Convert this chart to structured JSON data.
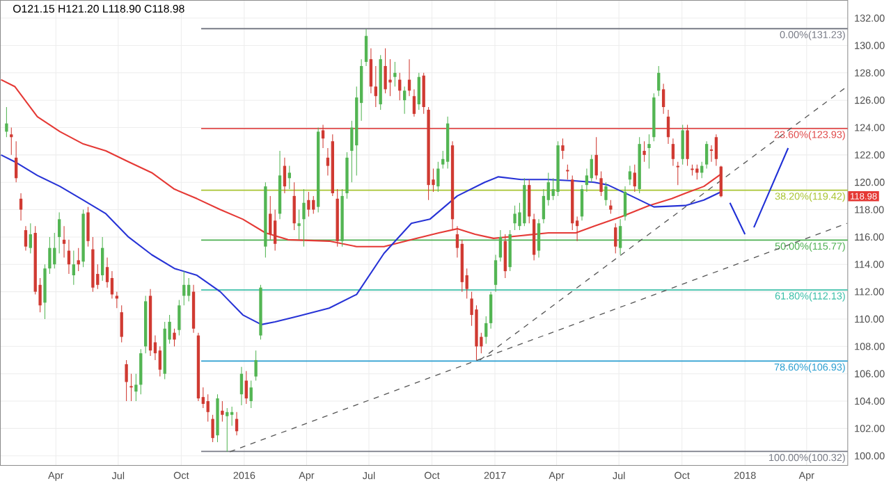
{
  "chart_data": {
    "type": "candlestick",
    "x": [
      "2015-01-19",
      "2015-01-26",
      "2015-02-02",
      "2015-02-09",
      "2015-02-16",
      "2015-02-23",
      "2015-03-02",
      "2015-03-09",
      "2015-03-16",
      "2015-03-23",
      "2015-03-30",
      "2015-04-06",
      "2015-04-13",
      "2015-04-20",
      "2015-04-27",
      "2015-05-04",
      "2015-05-11",
      "2015-05-18",
      "2015-05-25",
      "2015-06-01",
      "2015-06-08",
      "2015-06-15",
      "2015-06-22",
      "2015-06-29",
      "2015-07-06",
      "2015-07-13",
      "2015-07-20",
      "2015-07-27",
      "2015-08-03",
      "2015-08-10",
      "2015-08-17",
      "2015-08-24",
      "2015-08-31",
      "2015-09-07",
      "2015-09-14",
      "2015-09-21",
      "2015-09-28",
      "2015-10-05",
      "2015-10-12",
      "2015-10-19",
      "2015-10-26",
      "2015-11-02",
      "2015-11-09",
      "2015-11-16",
      "2015-11-23",
      "2015-11-30",
      "2015-12-07",
      "2015-12-14",
      "2015-12-21",
      "2015-12-28",
      "2016-01-04",
      "2016-01-11",
      "2016-01-18",
      "2016-01-25",
      "2016-02-01",
      "2016-02-08",
      "2016-02-15",
      "2016-02-22",
      "2016-02-29",
      "2016-03-07",
      "2016-03-14",
      "2016-03-21",
      "2016-03-28",
      "2016-04-04",
      "2016-04-11",
      "2016-04-18",
      "2016-04-25",
      "2016-05-02",
      "2016-05-09",
      "2016-05-16",
      "2016-05-23",
      "2016-05-30",
      "2016-06-06",
      "2016-06-13",
      "2016-06-20",
      "2016-06-27",
      "2016-07-04",
      "2016-07-11",
      "2016-07-18",
      "2016-07-25",
      "2016-08-01",
      "2016-08-08",
      "2016-08-15",
      "2016-08-22",
      "2016-08-29",
      "2016-09-05",
      "2016-09-12",
      "2016-09-19",
      "2016-09-26",
      "2016-10-03",
      "2016-10-10",
      "2016-10-17",
      "2016-10-24",
      "2016-10-31",
      "2016-11-07",
      "2016-11-14",
      "2016-11-21",
      "2016-11-28",
      "2016-12-05",
      "2016-12-12",
      "2016-12-19",
      "2016-12-26",
      "2017-01-02",
      "2017-01-09",
      "2017-01-16",
      "2017-01-23",
      "2017-01-30",
      "2017-02-06",
      "2017-02-13",
      "2017-02-20",
      "2017-02-27",
      "2017-03-06",
      "2017-03-13",
      "2017-03-20",
      "2017-03-27",
      "2017-04-03",
      "2017-04-10",
      "2017-04-17",
      "2017-04-24",
      "2017-05-01",
      "2017-05-08",
      "2017-05-15",
      "2017-05-22",
      "2017-05-29",
      "2017-06-05",
      "2017-06-12",
      "2017-06-19",
      "2017-06-26",
      "2017-07-03",
      "2017-07-10",
      "2017-07-17",
      "2017-07-24",
      "2017-07-31",
      "2017-08-07",
      "2017-08-14",
      "2017-08-21",
      "2017-08-28",
      "2017-09-04",
      "2017-09-11",
      "2017-09-18",
      "2017-09-25",
      "2017-10-02",
      "2017-10-09",
      "2017-10-16",
      "2017-10-23",
      "2017-10-30",
      "2017-11-06",
      "2017-11-13",
      "2017-11-20",
      "2017-11-27"
    ],
    "ohlc": [
      [
        123.7,
        125.5,
        123.3,
        124.3
      ],
      [
        123.5,
        124.0,
        122.0,
        123.3
      ],
      [
        121.8,
        123.0,
        120.0,
        120.3
      ],
      [
        118.8,
        119.2,
        117.2,
        118.0
      ],
      [
        116.5,
        116.8,
        115.0,
        115.3
      ],
      [
        115.2,
        117.0,
        114.8,
        116.2
      ],
      [
        116.3,
        116.8,
        111.8,
        112.0
      ],
      [
        112.5,
        113.0,
        110.5,
        111.0
      ],
      [
        111.2,
        114.0,
        110.0,
        113.7
      ],
      [
        113.7,
        116.0,
        113.3,
        115.2
      ],
      [
        114.0,
        116.3,
        113.7,
        115.2
      ],
      [
        116.0,
        117.8,
        114.8,
        117.3
      ],
      [
        115.8,
        116.8,
        114.5,
        115.5
      ],
      [
        115.0,
        115.8,
        113.3,
        114.0
      ],
      [
        113.2,
        115.0,
        112.5,
        114.0
      ],
      [
        114.3,
        115.2,
        113.5,
        114.0
      ],
      [
        114.2,
        118.0,
        113.8,
        117.7
      ],
      [
        117.8,
        118.2,
        115.3,
        115.7
      ],
      [
        115.1,
        116.0,
        112.0,
        112.3
      ],
      [
        113.3,
        114.0,
        112.2,
        112.5
      ],
      [
        113.2,
        116.0,
        112.8,
        115.2
      ],
      [
        113.8,
        114.5,
        112.3,
        112.7
      ],
      [
        113.0,
        113.5,
        111.5,
        111.8
      ],
      [
        111.7,
        112.0,
        110.8,
        111.5
      ],
      [
        110.5,
        111.0,
        108.3,
        108.7
      ],
      [
        106.7,
        107.0,
        104.0,
        105.4
      ],
      [
        105.1,
        106.0,
        104.0,
        105.0
      ],
      [
        104.7,
        106.0,
        104.0,
        105.2
      ],
      [
        105.2,
        107.8,
        104.5,
        107.5
      ],
      [
        108.0,
        111.7,
        107.5,
        111.3
      ],
      [
        111.7,
        112.2,
        107.3,
        107.7
      ],
      [
        108.3,
        108.8,
        107.0,
        107.5
      ],
      [
        107.7,
        108.0,
        105.8,
        106.3
      ],
      [
        106.0,
        109.8,
        105.6,
        109.3
      ],
      [
        108.5,
        110.3,
        108.2,
        109.8
      ],
      [
        109.0,
        109.3,
        108.0,
        108.5
      ],
      [
        109.2,
        111.4,
        108.8,
        111.0
      ],
      [
        111.7,
        113.5,
        111.0,
        112.5
      ],
      [
        111.7,
        113.0,
        111.3,
        112.5
      ],
      [
        112.0,
        112.5,
        109.0,
        109.3
      ],
      [
        108.8,
        109.0,
        104.0,
        104.2
      ],
      [
        104.3,
        105.0,
        103.5,
        103.8
      ],
      [
        104.0,
        104.5,
        102.5,
        103.2
      ],
      [
        102.7,
        103.0,
        101.0,
        101.3
      ],
      [
        101.5,
        104.5,
        101.0,
        104.2
      ],
      [
        103.3,
        104.0,
        102.5,
        103.0
      ],
      [
        102.9,
        103.5,
        100.3,
        103.2
      ],
      [
        103.0,
        103.6,
        102.2,
        103.2
      ],
      [
        102.7,
        103.2,
        101.5,
        101.8
      ],
      [
        104.5,
        106.5,
        103.7,
        106.0
      ],
      [
        105.5,
        106.2,
        103.8,
        104.2
      ],
      [
        104.0,
        105.5,
        103.5,
        105.0
      ],
      [
        105.8,
        107.7,
        105.5,
        107.0
      ],
      [
        108.8,
        112.5,
        108.5,
        112.3
      ],
      [
        115.3,
        120.0,
        114.5,
        119.7
      ],
      [
        117.7,
        119.0,
        115.8,
        116.2
      ],
      [
        117.2,
        118.0,
        115.0,
        115.5
      ],
      [
        117.7,
        122.3,
        117.3,
        120.5
      ],
      [
        121.2,
        121.8,
        119.2,
        119.7
      ],
      [
        120.3,
        121.2,
        119.5,
        120.7
      ],
      [
        119.0,
        120.0,
        116.5,
        117.0
      ],
      [
        116.8,
        118.0,
        115.8,
        117.0
      ],
      [
        117.3,
        119.5,
        115.3,
        118.5
      ],
      [
        118.7,
        119.3,
        117.5,
        118.0
      ],
      [
        118.7,
        119.0,
        117.7,
        118.0
      ],
      [
        118.2,
        124.0,
        117.8,
        123.7
      ],
      [
        123.8,
        124.2,
        122.5,
        123.2
      ],
      [
        121.8,
        122.5,
        120.5,
        121.2
      ],
      [
        123.0,
        123.5,
        119.0,
        119.2
      ],
      [
        118.8,
        119.5,
        115.3,
        115.7
      ],
      [
        115.7,
        119.5,
        115.3,
        119.0
      ],
      [
        119.2,
        122.2,
        118.8,
        121.8
      ],
      [
        122.3,
        124.5,
        120.0,
        124.0
      ],
      [
        122.7,
        127.0,
        120.5,
        126.2
      ],
      [
        125.8,
        129.0,
        124.5,
        128.5
      ],
      [
        128.8,
        131.2,
        128.5,
        130.7
      ],
      [
        129.0,
        129.8,
        126.5,
        127.0
      ],
      [
        127.0,
        128.5,
        125.5,
        126.3
      ],
      [
        125.7,
        129.3,
        125.3,
        129.0
      ],
      [
        128.5,
        129.8,
        126.5,
        126.8
      ],
      [
        127.5,
        129.0,
        126.3,
        127.3
      ],
      [
        127.7,
        128.8,
        127.0,
        128.0
      ],
      [
        127.5,
        128.0,
        126.0,
        126.7
      ],
      [
        126.0,
        127.0,
        125.0,
        126.7
      ],
      [
        127.5,
        129.0,
        126.3,
        126.7
      ],
      [
        126.3,
        126.8,
        124.8,
        125.0
      ],
      [
        125.7,
        128.0,
        125.3,
        127.7
      ],
      [
        127.8,
        128.0,
        125.0,
        125.5
      ],
      [
        125.3,
        125.5,
        118.7,
        119.8
      ],
      [
        120.2,
        121.0,
        119.3,
        119.8
      ],
      [
        119.7,
        121.5,
        119.3,
        121.0
      ],
      [
        121.3,
        122.3,
        121.0,
        121.7
      ],
      [
        121.5,
        124.8,
        121.0,
        124.3
      ],
      [
        122.7,
        123.0,
        116.5,
        117.3
      ],
      [
        116.2,
        116.8,
        114.5,
        115.2
      ],
      [
        115.5,
        115.8,
        112.0,
        112.7
      ],
      [
        113.2,
        113.7,
        111.5,
        112.2
      ],
      [
        111.5,
        112.0,
        109.5,
        110.3
      ],
      [
        110.7,
        111.0,
        107.0,
        108.0
      ],
      [
        108.7,
        109.0,
        107.5,
        108.0
      ],
      [
        108.7,
        110.2,
        108.2,
        109.7
      ],
      [
        109.7,
        112.0,
        109.3,
        111.8
      ],
      [
        112.5,
        114.7,
        112.0,
        114.3
      ],
      [
        114.5,
        116.5,
        114.2,
        116.0
      ],
      [
        115.7,
        116.2,
        113.0,
        113.5
      ],
      [
        113.8,
        116.5,
        113.5,
        116.2
      ],
      [
        117.0,
        118.3,
        116.5,
        117.7
      ],
      [
        116.8,
        118.5,
        116.5,
        117.8
      ],
      [
        117.0,
        120.3,
        116.8,
        119.8
      ],
      [
        119.8,
        120.2,
        117.0,
        117.5
      ],
      [
        117.3,
        117.7,
        114.3,
        114.7
      ],
      [
        115.0,
        117.3,
        114.5,
        117.0
      ],
      [
        117.3,
        119.5,
        117.0,
        119.0
      ],
      [
        118.7,
        120.7,
        118.3,
        120.0
      ],
      [
        119.0,
        120.3,
        118.7,
        119.5
      ],
      [
        119.3,
        123.0,
        119.0,
        122.7
      ],
      [
        122.7,
        123.2,
        121.7,
        122.3
      ],
      [
        120.9,
        121.3,
        120.2,
        120.8
      ],
      [
        120.2,
        120.5,
        116.5,
        117.0
      ],
      [
        117.2,
        117.5,
        115.7,
        116.8
      ],
      [
        117.5,
        119.8,
        117.2,
        119.5
      ],
      [
        119.8,
        121.0,
        119.3,
        120.5
      ],
      [
        120.3,
        122.0,
        120.0,
        121.7
      ],
      [
        122.0,
        123.3,
        120.2,
        120.5
      ],
      [
        120.3,
        120.8,
        119.0,
        119.3
      ],
      [
        118.7,
        120.0,
        118.3,
        119.7
      ],
      [
        118.3,
        118.7,
        117.7,
        118.0
      ],
      [
        116.7,
        117.0,
        114.8,
        115.3
      ],
      [
        115.2,
        117.3,
        114.7,
        116.8
      ],
      [
        117.5,
        119.7,
        117.2,
        119.3
      ],
      [
        120.2,
        121.2,
        119.8,
        120.8
      ],
      [
        120.7,
        121.3,
        119.3,
        119.7
      ],
      [
        119.5,
        123.3,
        119.2,
        122.8
      ],
      [
        122.3,
        123.0,
        121.5,
        122.0
      ],
      [
        122.5,
        123.5,
        121.0,
        122.8
      ],
      [
        123.3,
        126.5,
        123.0,
        126.2
      ],
      [
        126.7,
        128.5,
        126.3,
        128.0
      ],
      [
        126.8,
        127.2,
        125.0,
        125.5
      ],
      [
        124.8,
        125.3,
        122.8,
        123.3
      ],
      [
        122.8,
        123.2,
        121.2,
        121.7
      ],
      [
        121.2,
        121.5,
        119.8,
        121.1
      ],
      [
        121.7,
        124.2,
        121.3,
        123.8
      ],
      [
        123.8,
        124.2,
        121.2,
        121.7
      ],
      [
        121.0,
        121.3,
        120.5,
        120.9
      ],
      [
        121.0,
        121.3,
        120.2,
        120.7
      ],
      [
        120.7,
        121.5,
        120.3,
        121.2
      ],
      [
        121.3,
        123.0,
        121.0,
        122.8
      ],
      [
        122.4,
        122.7,
        121.5,
        122.3
      ],
      [
        123.3,
        123.5,
        121.2,
        121.7
      ],
      [
        121.15,
        121.2,
        118.9,
        118.98
      ]
    ],
    "series": [
      {
        "type": "line",
        "color": "#e53935",
        "x": [
          "2015-01-11",
          "2015-01-31",
          "2015-03-05",
          "2015-04-07",
          "2015-05-11",
          "2015-06-13",
          "2015-07-16",
          "2015-08-19",
          "2015-09-21",
          "2015-10-24",
          "2015-11-27",
          "2015-12-30",
          "2016-02-01",
          "2016-03-05",
          "2016-05-04",
          "2016-06-13",
          "2016-07-23",
          "2016-09-01",
          "2016-10-11",
          "2016-11-07",
          "2016-12-03",
          "2016-12-30",
          "2017-02-08",
          "2017-03-20",
          "2017-04-29",
          "2017-05-26",
          "2017-07-05",
          "2017-08-14",
          "2017-09-16",
          "2017-10-06",
          "2017-11-02",
          "2017-11-27"
        ],
        "values": [
          127.5,
          127.0,
          124.8,
          123.7,
          122.8,
          122.3,
          121.5,
          120.7,
          119.5,
          118.8,
          118.0,
          117.3,
          116.3,
          115.8,
          115.7,
          115.3,
          115.3,
          115.8,
          116.3,
          116.6,
          116.2,
          115.9,
          116.1,
          116.3,
          116.3,
          116.8,
          117.5,
          118.3,
          118.8,
          119.2,
          119.7,
          120.6
        ]
      },
      {
        "type": "line",
        "color": "#2733d6",
        "x": [
          "2015-01-11",
          "2015-01-31",
          "2015-03-05",
          "2015-04-07",
          "2015-05-11",
          "2015-06-13",
          "2015-07-16",
          "2015-08-19",
          "2015-09-21",
          "2015-10-24",
          "2015-11-27",
          "2015-12-30",
          "2016-01-26",
          "2016-02-15",
          "2016-03-19",
          "2016-05-04",
          "2016-06-13",
          "2016-07-23",
          "2016-09-01",
          "2016-09-28",
          "2016-11-07",
          "2016-12-17",
          "2017-01-06",
          "2017-02-08",
          "2017-03-20",
          "2017-04-29",
          "2017-05-26",
          "2017-06-15",
          "2017-07-19",
          "2017-08-21",
          "2017-10-06",
          "2017-11-02",
          "2017-11-27"
        ],
        "values": [
          122.0,
          121.5,
          120.5,
          119.7,
          118.7,
          117.7,
          116.0,
          114.7,
          113.7,
          113.2,
          112.0,
          110.3,
          109.6,
          109.8,
          110.2,
          110.8,
          111.8,
          114.8,
          117.0,
          117.3,
          119.0,
          120.0,
          120.4,
          120.2,
          120.2,
          120.1,
          120.0,
          119.8,
          119.0,
          118.2,
          118.3,
          118.7,
          119.3
        ]
      },
      {
        "type": "line",
        "color": "#555555",
        "line_style": "dashed",
        "x": [
          "2016-12-10",
          "2018-05-30"
        ],
        "values": [
          107.0,
          127.0
        ]
      },
      {
        "type": "line",
        "color": "#555555",
        "line_style": "dashed",
        "x": [
          "2015-12-11",
          "2018-05-30"
        ],
        "values": [
          100.3,
          117.0
        ]
      },
      {
        "type": "line",
        "color": "#1f2fd6",
        "x": [
          "2017-12-10",
          "2018-01-01"
        ],
        "values": [
          118.5,
          116.2
        ]
      },
      {
        "type": "line",
        "color": "#1f2fd6",
        "x": [
          "2018-01-14",
          "2018-03-05"
        ],
        "values": [
          116.7,
          122.5
        ]
      }
    ],
    "ref_lines": [
      {
        "axis": "y",
        "value": 131.23,
        "label": "0.00%(131.23)",
        "color": "#787b86"
      },
      {
        "axis": "y",
        "value": 123.93,
        "label": "23.60%(123.93)",
        "color": "#e04a4a"
      },
      {
        "axis": "y",
        "value": 119.42,
        "label": "38.20%(119.42)",
        "color": "#a8c431"
      },
      {
        "axis": "y",
        "value": 115.77,
        "label": "50.00%(115.77)",
        "color": "#4caf50"
      },
      {
        "axis": "y",
        "value": 112.13,
        "label": "61.80%(112.13)",
        "color": "#3cbfa8"
      },
      {
        "axis": "y",
        "value": 106.93,
        "label": "78.60%(106.93)",
        "color": "#2b9ed0"
      },
      {
        "axis": "y",
        "value": 100.32,
        "label": "100.00%(100.32)",
        "color": "#787b86"
      }
    ],
    "annotations": [
      "O121.15  H121.20  L118.90  C118.98",
      "118.98"
    ],
    "xlim": [
      "2015-01-10",
      "2018-05-31"
    ],
    "xticks": [
      {
        "value": "2015-04-01",
        "label": "Apr"
      },
      {
        "value": "2015-07-01",
        "label": "Jul"
      },
      {
        "value": "2015-10-01",
        "label": "Oct"
      },
      {
        "value": "2016-01-01",
        "label": "2016"
      },
      {
        "value": "2016-04-01",
        "label": "Apr"
      },
      {
        "value": "2016-07-01",
        "label": "Jul"
      },
      {
        "value": "2016-10-01",
        "label": "Oct"
      },
      {
        "value": "2017-01-01",
        "label": "2017"
      },
      {
        "value": "2017-04-01",
        "label": "Apr"
      },
      {
        "value": "2017-07-01",
        "label": "Jul"
      },
      {
        "value": "2017-10-01",
        "label": "Oct"
      },
      {
        "value": "2018-01-01",
        "label": "2018"
      },
      {
        "value": "2018-04-01",
        "label": "Apr"
      }
    ],
    "ylim": [
      99.3,
      133.3
    ],
    "yticks": [
      {
        "value": 100,
        "label": "100.00"
      },
      {
        "value": 102,
        "label": "102.00"
      },
      {
        "value": 104,
        "label": "104.00"
      },
      {
        "value": 106,
        "label": "106.00"
      },
      {
        "value": 108,
        "label": "108.00"
      },
      {
        "value": 110,
        "label": "110.00"
      },
      {
        "value": 112,
        "label": "112.00"
      },
      {
        "value": 114,
        "label": "114.00"
      },
      {
        "value": 116,
        "label": "116.00"
      },
      {
        "value": 118,
        "label": "118.00"
      },
      {
        "value": 120,
        "label": "120.00"
      },
      {
        "value": 122,
        "label": "122.00"
      },
      {
        "value": 124,
        "label": "124.00"
      },
      {
        "value": 126,
        "label": "126.00"
      },
      {
        "value": 128,
        "label": "128.00"
      },
      {
        "value": 130,
        "label": "130.00"
      },
      {
        "value": 132,
        "label": "132.00"
      }
    ],
    "grid": true,
    "marker": "none"
  }
}
